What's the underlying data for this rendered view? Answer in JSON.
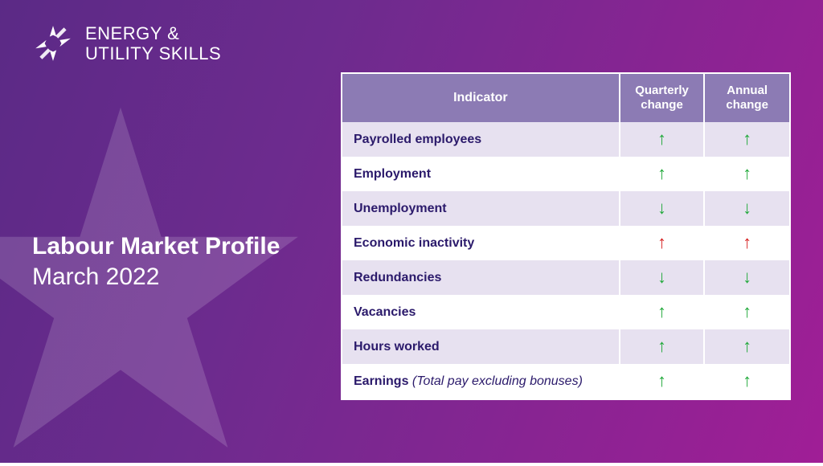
{
  "brand": {
    "line1": "ENERGY &",
    "line2": "UTILITY SKILLS"
  },
  "title": {
    "main": "Labour Market Profile",
    "sub": "March 2022"
  },
  "table": {
    "header_bg": "#8c7bb4",
    "row_alt_bg": "#e7e1f0",
    "row_bg": "#ffffff",
    "text_color": "#2b1a6b",
    "arrow_green": "#1ea838",
    "arrow_red": "#d61f1f",
    "columns": [
      "Indicator",
      "Quarterly change",
      "Annual change"
    ],
    "rows": [
      {
        "label": "Payrolled employees",
        "note": "",
        "q": "up-green",
        "a": "up-green"
      },
      {
        "label": "Employment",
        "note": "",
        "q": "up-green",
        "a": "up-green"
      },
      {
        "label": "Unemployment",
        "note": "",
        "q": "down-green",
        "a": "down-green"
      },
      {
        "label": "Economic inactivity",
        "note": "",
        "q": "up-red",
        "a": "up-red"
      },
      {
        "label": "Redundancies",
        "note": "",
        "q": "down-green",
        "a": "down-green"
      },
      {
        "label": "Vacancies",
        "note": "",
        "q": "up-green",
        "a": "up-green"
      },
      {
        "label": "Hours worked",
        "note": "",
        "q": "up-green",
        "a": "up-green"
      },
      {
        "label": "Earnings",
        "note": " (Total pay excluding bonuses)",
        "q": "up-green",
        "a": "up-green"
      }
    ]
  },
  "colors": {
    "bg_gradient_from": "#5b2a86",
    "bg_gradient_to": "#a01e96"
  }
}
